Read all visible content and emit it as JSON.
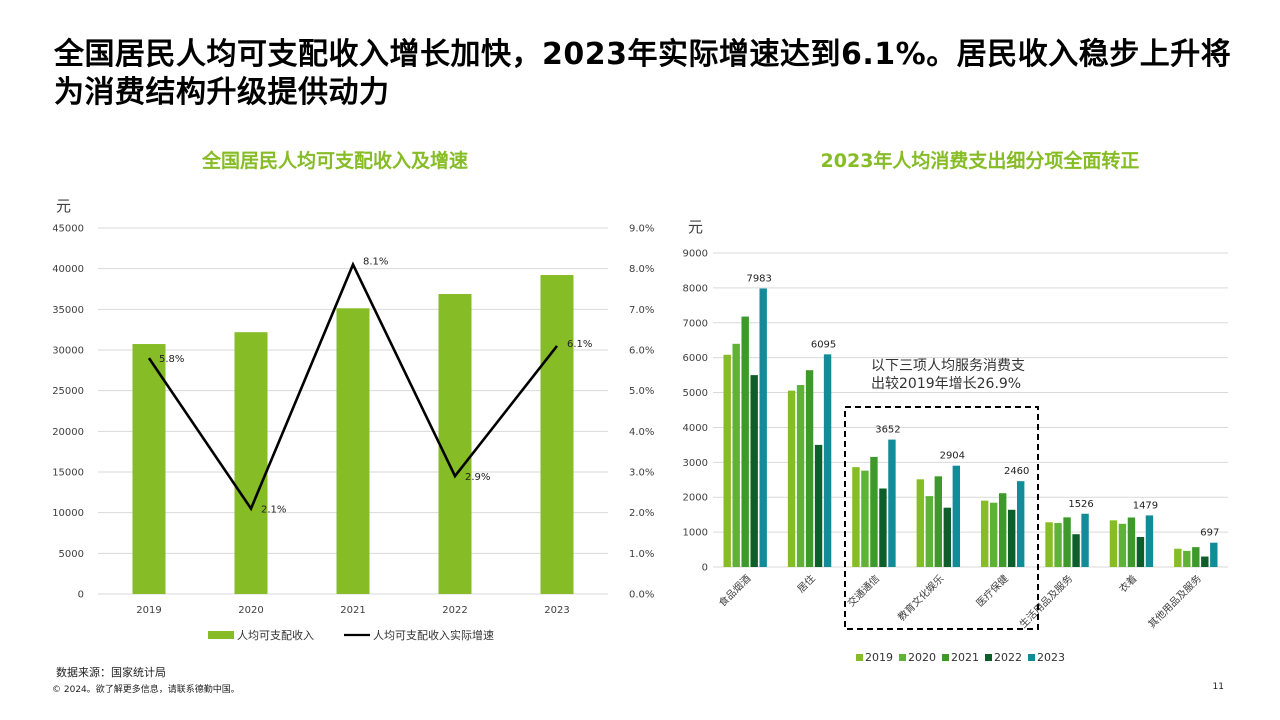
{
  "headline": "全国居民人均可支配收入增长加快，2023年实际增速达到6.1%。居民收入稳步上升将为消费结构升级提供动力",
  "footer": {
    "source": "数据来源：国家统计局",
    "copyright": "© 2024。欲了解更多信息，请联系德勤中国。",
    "page": "11"
  },
  "colors": {
    "accent": "#86bc25",
    "s2019": "#86bc25",
    "s2020": "#5fb236",
    "s2021": "#3d9a2a",
    "s2022": "#0d5e2b",
    "s2023": "#138c9a"
  },
  "chart_data": [
    {
      "type": "bar+line",
      "title": "全国居民人均可支配收入及增速",
      "unit": "元",
      "categories": [
        "2019",
        "2020",
        "2021",
        "2022",
        "2023"
      ],
      "bars": {
        "name": "人均可支配收入",
        "values": [
          30733,
          32189,
          35128,
          36883,
          39218
        ]
      },
      "line": {
        "name": "人均可支配收入实际增速",
        "values": [
          5.8,
          2.1,
          8.1,
          2.9,
          6.1
        ],
        "labels": [
          "5.8%",
          "2.1%",
          "8.1%",
          "2.9%",
          "6.1%"
        ]
      },
      "y_left": {
        "min": 0,
        "max": 45000,
        "step": 5000,
        "ticks": [
          "0",
          "5000",
          "10000",
          "15000",
          "20000",
          "25000",
          "30000",
          "35000",
          "40000",
          "45000"
        ]
      },
      "y_right": {
        "min": 0,
        "max": 9,
        "step": 1,
        "ticks": [
          "0.0%",
          "1.0%",
          "2.0%",
          "3.0%",
          "4.0%",
          "5.0%",
          "6.0%",
          "7.0%",
          "8.0%",
          "9.0%"
        ]
      },
      "grid": true,
      "legend": "bottom"
    },
    {
      "type": "bar",
      "title": "2023年人均消费支出细分项全面转正",
      "unit": "元",
      "categories": [
        "食品烟酒",
        "居住",
        "交通通信",
        "教育文化娱乐",
        "医疗保健",
        "生活用品及服务",
        "衣着",
        "其他用品及服务"
      ],
      "series": [
        {
          "name": "2019",
          "values": [
            6084,
            5055,
            2862,
            2513,
            1902,
            1281,
            1338,
            524
          ]
        },
        {
          "name": "2020",
          "values": [
            6397,
            5215,
            2762,
            2032,
            1843,
            1260,
            1238,
            462
          ]
        },
        {
          "name": "2021",
          "values": [
            7178,
            5641,
            3156,
            2599,
            2115,
            1423,
            1419,
            569
          ]
        },
        {
          "name": "2022",
          "values": [
            5500,
            3500,
            2250,
            1700,
            1640,
            940,
            860,
            300
          ]
        },
        {
          "name": "2023",
          "values": [
            7983,
            6095,
            3652,
            2904,
            2460,
            1526,
            1479,
            697
          ]
        }
      ],
      "data_labels": [
        "7983",
        "6095",
        "3652",
        "2904",
        "2460",
        "1526",
        "1479",
        "697"
      ],
      "y": {
        "min": 0,
        "max": 9000,
        "step": 1000,
        "ticks": [
          "0",
          "1000",
          "2000",
          "3000",
          "4000",
          "5000",
          "6000",
          "7000",
          "8000",
          "9000"
        ]
      },
      "grid": true,
      "legend": "bottom",
      "annotation": [
        "以下三项人均服务消费支",
        "出较2019年增长26.9%"
      ]
    }
  ]
}
